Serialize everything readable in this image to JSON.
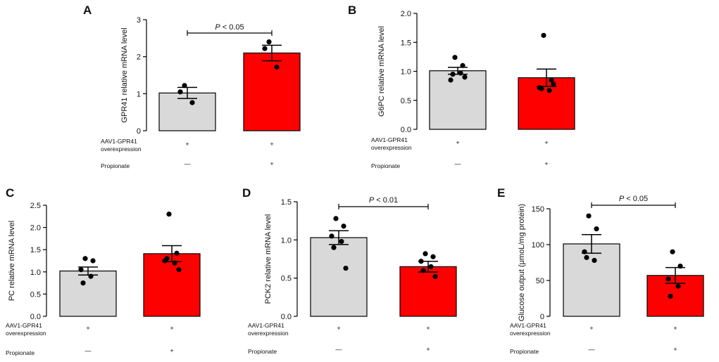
{
  "figure": {
    "row_labels": {
      "construct_line1": "AAV1-GPR41",
      "construct_line2": "overexpression",
      "treatment": "Propionate"
    },
    "colors": {
      "control": "#d9d9d9",
      "treated": "#ff0000",
      "axis": "#000000"
    }
  },
  "chart_data": [
    {
      "panel": "A",
      "type": "bar",
      "ylabel": "GPR41 relative mRNA level",
      "ylim": [
        0,
        3
      ],
      "yticks": [
        "0",
        "1",
        "2",
        "3"
      ],
      "ytick_values": [
        0,
        1,
        2,
        3
      ],
      "categories": [
        "AAV1-GPR41 overexpression + / Propionate —",
        "AAV1-GPR41 overexpression + / Propionate +"
      ],
      "values": [
        1.02,
        2.1
      ],
      "sem": [
        0.15,
        0.21
      ],
      "points": [
        [
          1.22,
          0.76,
          1.05
        ],
        [
          2.4,
          1.72,
          2.22
        ]
      ],
      "row_construct": [
        "+",
        "+"
      ],
      "row_treatment": [
        "—",
        "+"
      ],
      "significance": "P < 0.05"
    },
    {
      "panel": "B",
      "type": "bar",
      "ylabel": "G6PC relative mRNA level",
      "ylim": [
        0,
        2
      ],
      "yticks": [
        "0.0",
        "0.5",
        "1.0",
        "1.5",
        "2.0"
      ],
      "ytick_values": [
        0,
        0.5,
        1,
        1.5,
        2
      ],
      "categories": [
        "AAV1-GPR41 overexpression + / Propionate —",
        "AAV1-GPR41 overexpression + / Propionate +"
      ],
      "values": [
        1.01,
        0.89
      ],
      "sem": [
        0.06,
        0.15
      ],
      "points": [
        [
          1.24,
          1.1,
          0.85,
          0.97,
          0.95,
          0.9
        ],
        [
          1.62,
          0.85,
          0.72,
          0.67,
          0.7,
          0.78
        ]
      ],
      "row_construct": [
        "+",
        "+"
      ],
      "row_treatment": [
        "—",
        "+"
      ],
      "significance": null
    },
    {
      "panel": "C",
      "type": "bar",
      "ylabel": "PC relative mRNA level",
      "ylim": [
        0,
        2.5
      ],
      "yticks": [
        "0.0",
        "0.5",
        "1.0",
        "1.5",
        "2.0",
        "2.5"
      ],
      "ytick_values": [
        0,
        0.5,
        1,
        1.5,
        2,
        2.5
      ],
      "categories": [
        "AAV1-GPR41 overexpression + / Propionate —",
        "AAV1-GPR41 overexpression + / Propionate +"
      ],
      "values": [
        1.02,
        1.41
      ],
      "sem": [
        0.09,
        0.18
      ],
      "points": [
        [
          1.3,
          1.25,
          1.05,
          0.9,
          0.75
        ],
        [
          2.3,
          1.42,
          1.25,
          1.2,
          1.3,
          1.05
        ]
      ],
      "row_construct": [
        "+",
        "+"
      ],
      "row_treatment": [
        "—",
        "+"
      ],
      "significance": null
    },
    {
      "panel": "D",
      "type": "bar",
      "ylabel": "PCK2 relative mRNA level",
      "ylim": [
        0,
        1.5
      ],
      "yticks": [
        "0.0",
        "0.5",
        "1.0",
        "1.5"
      ],
      "ytick_values": [
        0,
        0.5,
        1,
        1.5
      ],
      "categories": [
        "AAV1-GPR41 overexpression + / Propionate —",
        "AAV1-GPR41 overexpression + / Propionate +"
      ],
      "values": [
        1.03,
        0.65
      ],
      "sem": [
        0.09,
        0.07
      ],
      "points": [
        [
          1.28,
          1.18,
          1.05,
          0.98,
          0.9,
          0.63
        ],
        [
          0.82,
          0.78,
          0.72,
          0.65,
          0.6,
          0.52
        ]
      ],
      "row_construct": [
        "+",
        "+"
      ],
      "row_treatment": [
        "—",
        "+"
      ],
      "significance": "P < 0.01"
    },
    {
      "panel": "E",
      "type": "bar",
      "ylabel": "Glucose output (μmoL/mg protein)",
      "ylim": [
        0,
        150
      ],
      "yticks": [
        "0",
        "50",
        "100",
        "150"
      ],
      "ytick_values": [
        0,
        50,
        100,
        150
      ],
      "categories": [
        "AAV1-GPR41 overexpression + / Propionate —",
        "AAV1-GPR41 overexpression + / Propionate +"
      ],
      "values": [
        101,
        57
      ],
      "sem": [
        13,
        11
      ],
      "points": [
        [
          140,
          122,
          90,
          78,
          82
        ],
        [
          90,
          70,
          52,
          42,
          28
        ]
      ],
      "row_construct": [
        "+",
        "+"
      ],
      "row_treatment": [
        "—",
        "+"
      ],
      "significance": "P < 0.05"
    }
  ]
}
